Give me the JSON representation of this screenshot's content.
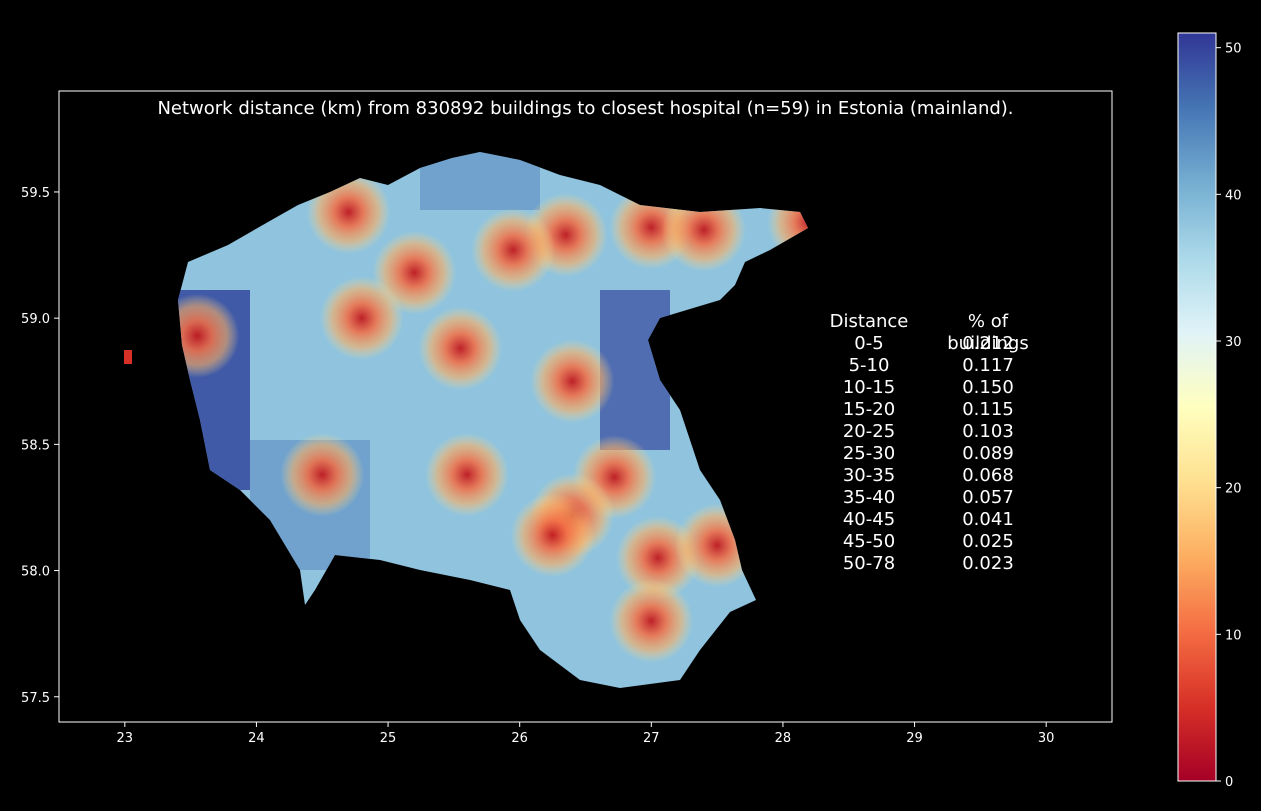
{
  "title": "Network distance (km) from 830892 buildings to closest hospital (n=59) in Estonia (mainland).",
  "chart_data": {
    "type": "map",
    "x_ticks": [
      "23",
      "24",
      "25",
      "26",
      "27",
      "28",
      "29",
      "30"
    ],
    "y_ticks": [
      "59.5",
      "59.0",
      "58.5",
      "58.0",
      "57.5"
    ],
    "x_range": [
      22.5,
      30.5
    ],
    "y_range": [
      57.4,
      59.9
    ],
    "colorbar": {
      "ticks": [
        "0",
        "10",
        "20",
        "30",
        "40",
        "50"
      ],
      "range": [
        0,
        51
      ],
      "colormap": "RdYlBu"
    },
    "table": {
      "headers": [
        "Distance",
        "% of buildings"
      ],
      "rows": [
        {
          "distance": "0-5",
          "share": "0.212"
        },
        {
          "distance": "5-10",
          "share": "0.117"
        },
        {
          "distance": "10-15",
          "share": "0.150"
        },
        {
          "distance": "15-20",
          "share": "0.115"
        },
        {
          "distance": "20-25",
          "share": "0.103"
        },
        {
          "distance": "25-30",
          "share": "0.089"
        },
        {
          "distance": "30-35",
          "share": "0.068"
        },
        {
          "distance": "35-40",
          "share": "0.057"
        },
        {
          "distance": "40-45",
          "share": "0.041"
        },
        {
          "distance": "45-50",
          "share": "0.025"
        },
        {
          "distance": "50-78",
          "share": "0.023"
        }
      ]
    },
    "hospital_hotspots": [
      {
        "lon": 24.7,
        "lat": 59.42
      },
      {
        "lon": 25.2,
        "lat": 59.18
      },
      {
        "lon": 24.8,
        "lat": 59.0
      },
      {
        "lon": 25.55,
        "lat": 58.88
      },
      {
        "lon": 26.35,
        "lat": 59.33
      },
      {
        "lon": 25.95,
        "lat": 59.27
      },
      {
        "lon": 27.0,
        "lat": 59.36
      },
      {
        "lon": 27.4,
        "lat": 59.35
      },
      {
        "lon": 28.2,
        "lat": 59.38
      },
      {
        "lon": 23.55,
        "lat": 58.93
      },
      {
        "lon": 26.4,
        "lat": 58.75
      },
      {
        "lon": 25.6,
        "lat": 58.38
      },
      {
        "lon": 24.5,
        "lat": 58.38
      },
      {
        "lon": 26.72,
        "lat": 58.37
      },
      {
        "lon": 26.4,
        "lat": 58.22
      },
      {
        "lon": 26.25,
        "lat": 58.14
      },
      {
        "lon": 27.05,
        "lat": 58.05
      },
      {
        "lon": 27.0,
        "lat": 57.8
      },
      {
        "lon": 27.5,
        "lat": 58.1
      },
      {
        "lon": 23.05,
        "lat": 58.85
      }
    ],
    "colors": {
      "background": "#000000",
      "frame": "#ffffff",
      "text": "#ffffff"
    }
  }
}
